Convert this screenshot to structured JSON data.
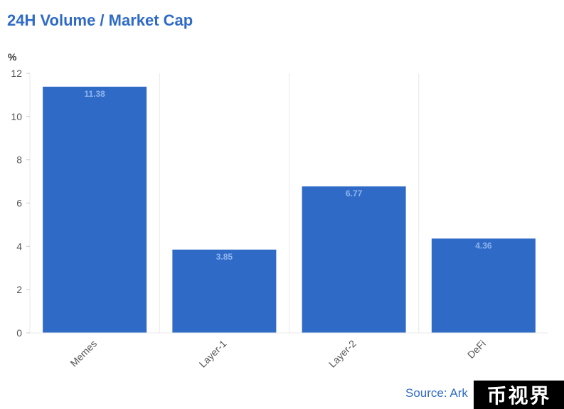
{
  "chart_title": "24H Volume / Market Cap",
  "source_text": "Source: Ark",
  "watermark_text": "币视界",
  "colors": {
    "bar": "#2f6bc6",
    "bar_label": "#8fb4f0",
    "title": "#2f6bc6",
    "grid": "#e8e8e8",
    "tick": "#555555"
  },
  "chart_data": {
    "type": "bar",
    "title": "24H Volume / Market Cap",
    "xlabel": "",
    "ylabel": "%",
    "categories": [
      "Memes",
      "Layer-1",
      "Layer-2",
      "DeFi"
    ],
    "values": [
      11.38,
      3.85,
      6.77,
      4.36
    ],
    "value_labels": [
      "11.38",
      "3.85",
      "6.77",
      "4.36"
    ],
    "ylim": [
      0,
      12
    ],
    "yticks": [
      0,
      2,
      4,
      6,
      8,
      10,
      12
    ],
    "grid": "vertical",
    "legend": "none"
  }
}
